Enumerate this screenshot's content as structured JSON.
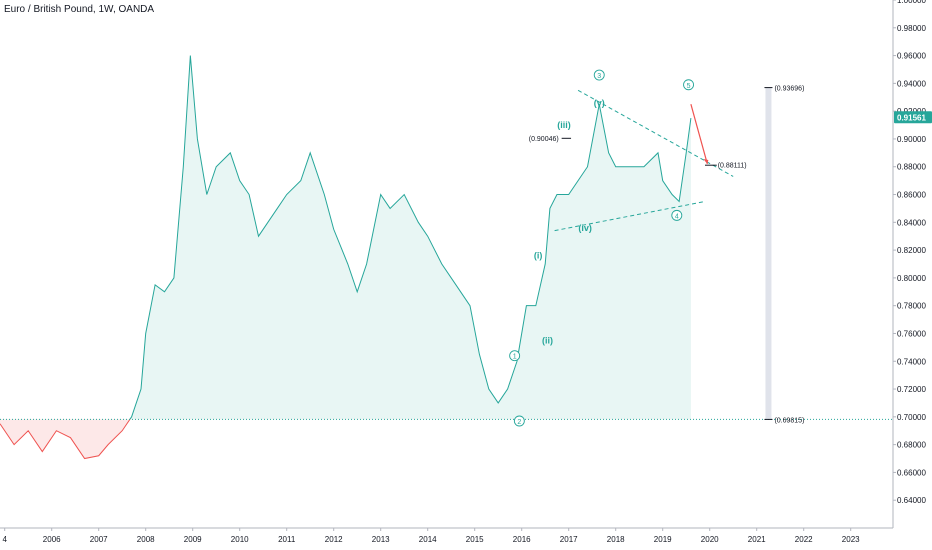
{
  "title": "Euro / British Pound, 1W, OANDA",
  "chart_data": {
    "type": "line",
    "symbol": "Euro / British Pound",
    "interval": "1W",
    "exchange": "OANDA",
    "ylim": [
      0.62,
      1.0
    ],
    "xlim": [
      2004.9,
      2023.9
    ],
    "y_ticks": [
      "0.64000",
      "0.66000",
      "0.68000",
      "0.70000",
      "0.72000",
      "0.74000",
      "0.76000",
      "0.78000",
      "0.80000",
      "0.82000",
      "0.84000",
      "0.86000",
      "0.88000",
      "0.90000",
      "0.92000",
      "0.94000",
      "0.96000",
      "0.98000",
      "1.00000"
    ],
    "x_ticks": [
      "4",
      "2006",
      "2007",
      "2008",
      "2009",
      "2010",
      "2011",
      "2012",
      "2013",
      "2014",
      "2015",
      "2016",
      "2017",
      "2018",
      "2019",
      "2020",
      "2021",
      "2022",
      "2023"
    ],
    "baseline": 0.69815,
    "current_price": "0.91561",
    "current_price_value": 0.91561,
    "series": [
      {
        "values_x": [
          2004.9,
          2005.2,
          2005.5,
          2005.8,
          2006.1,
          2006.4,
          2006.7,
          2007.0,
          2007.2,
          2007.5,
          2007.7,
          2007.9,
          2008.0,
          2008.2,
          2008.4,
          2008.6,
          2008.8,
          2008.95,
          2009.1,
          2009.3,
          2009.5,
          2009.8,
          2010.0,
          2010.2,
          2010.4,
          2010.6,
          2010.8,
          2011.0,
          2011.3,
          2011.5,
          2011.8,
          2012.0,
          2012.3,
          2012.5,
          2012.7,
          2013.0,
          2013.2,
          2013.5,
          2013.8,
          2014.0,
          2014.3,
          2014.6,
          2014.9,
          2015.1,
          2015.3,
          2015.5,
          2015.7,
          2015.9,
          2016.1,
          2016.3,
          2016.5,
          2016.6,
          2016.75,
          2017.0,
          2017.2,
          2017.4,
          2017.65,
          2017.85,
          2018.0,
          2018.3,
          2018.6,
          2018.9,
          2019.0,
          2019.2,
          2019.35,
          2019.5,
          2019.6
        ],
        "values": [
          0.695,
          0.68,
          0.69,
          0.675,
          0.69,
          0.685,
          0.67,
          0.672,
          0.68,
          0.69,
          0.7,
          0.72,
          0.76,
          0.795,
          0.79,
          0.8,
          0.88,
          0.96,
          0.9,
          0.86,
          0.88,
          0.89,
          0.87,
          0.86,
          0.83,
          0.84,
          0.85,
          0.86,
          0.87,
          0.89,
          0.86,
          0.835,
          0.81,
          0.79,
          0.81,
          0.86,
          0.85,
          0.86,
          0.84,
          0.83,
          0.81,
          0.795,
          0.78,
          0.745,
          0.72,
          0.71,
          0.72,
          0.74,
          0.78,
          0.78,
          0.81,
          0.85,
          0.86,
          0.86,
          0.87,
          0.88,
          0.925,
          0.89,
          0.88,
          0.88,
          0.88,
          0.89,
          0.87,
          0.86,
          0.855,
          0.89,
          0.915
        ]
      }
    ],
    "wave_labels": [
      "1",
      "2",
      "3",
      "4",
      "5",
      "(i)",
      "(ii)",
      "(iii)",
      "(iv)",
      "(v)"
    ],
    "wave_points": [
      {
        "label": "1",
        "x": 2015.85,
        "y": 0.744,
        "circled": true
      },
      {
        "label": "2",
        "x": 2015.95,
        "y": 0.697,
        "circled": true
      },
      {
        "label": "3",
        "x": 2017.65,
        "y": 0.946,
        "circled": true
      },
      {
        "label": "4",
        "x": 2019.3,
        "y": 0.845,
        "circled": true
      },
      {
        "label": "5",
        "x": 2019.55,
        "y": 0.939,
        "circled": true
      },
      {
        "label": "(i)",
        "x": 2016.35,
        "y": 0.816,
        "circled": false
      },
      {
        "label": "(ii)",
        "x": 2016.55,
        "y": 0.755,
        "circled": false
      },
      {
        "label": "(iii)",
        "x": 2016.9,
        "y": 0.91,
        "circled": false
      },
      {
        "label": "(iv)",
        "x": 2017.35,
        "y": 0.836,
        "circled": false
      },
      {
        "label": "(v)",
        "x": 2017.65,
        "y": 0.926,
        "circled": false
      }
    ],
    "annotations": [
      "(0.90046)",
      "(0.88111)",
      "(0.93696)",
      "(0.69815)"
    ],
    "annotation_levels": [
      0.90046,
      0.88111,
      0.93696,
      0.69815
    ],
    "trendlines": [
      {
        "x1": 2017.2,
        "y1": 0.935,
        "x2": 2020.5,
        "y2": 0.873
      },
      {
        "x1": 2016.7,
        "y1": 0.834,
        "x2": 2019.9,
        "y2": 0.855
      }
    ],
    "arrow": {
      "x1": 2019.6,
      "y1": 0.925,
      "x2": 2019.95,
      "y2": 0.882
    },
    "colors": {
      "line": "#26a69a",
      "line_below": "#ef5350",
      "fill_above": "#e8f6f4",
      "fill_below": "#fde8e8",
      "badge": "#26a69a",
      "arrow": "#ef5350"
    }
  }
}
